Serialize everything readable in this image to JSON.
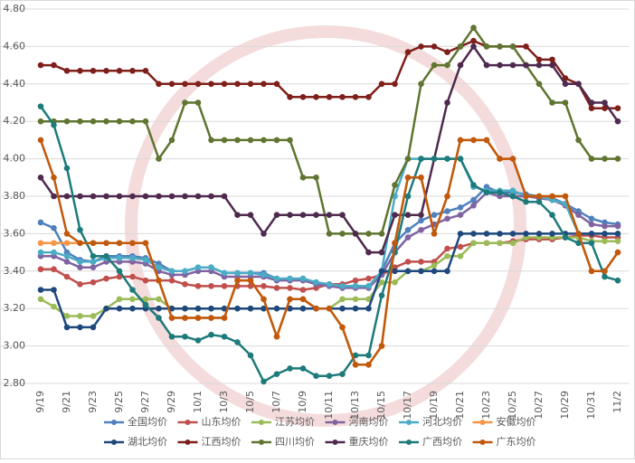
{
  "chart_data": {
    "type": "line",
    "categories": [
      "9/19",
      null,
      "9/21",
      null,
      "9/23",
      null,
      "9/25",
      null,
      "9/27",
      null,
      "9/29",
      null,
      "10/1",
      null,
      "10/3",
      null,
      "10/5",
      null,
      "10/7",
      null,
      "10/9",
      null,
      "10/11",
      null,
      "10/13",
      null,
      "10/15",
      null,
      "10/17",
      null,
      "10/19",
      null,
      "10/21",
      null,
      "10/23",
      null,
      "10/25",
      null,
      "10/27",
      null,
      "10/29",
      null,
      "10/31",
      null,
      "11/2"
    ],
    "ylim": [
      2.8,
      4.8
    ],
    "yticks": [
      {
        "value": 2.8,
        "label": "2.80"
      },
      {
        "value": 3.0,
        "label": "3.00"
      },
      {
        "value": 3.2,
        "label": "3.20"
      },
      {
        "value": 3.4,
        "label": "3.40"
      },
      {
        "value": 3.6,
        "label": "3.60"
      },
      {
        "value": 3.8,
        "label": "3.80"
      },
      {
        "value": 4.0,
        "label": "4.00"
      },
      {
        "value": 4.2,
        "label": "4.20"
      },
      {
        "value": 4.4,
        "label": "4.40"
      },
      {
        "value": 4.6,
        "label": "4.60"
      },
      {
        "value": 4.8,
        "label": "4.80"
      }
    ],
    "grid": true,
    "legend": "bottom",
    "series": [
      {
        "name": "全国均价",
        "color": "#4f81bd",
        "values": [
          3.66,
          3.63,
          3.5,
          3.46,
          3.45,
          3.48,
          3.48,
          3.48,
          3.47,
          3.44,
          3.4,
          3.4,
          3.42,
          3.42,
          3.39,
          3.39,
          3.39,
          3.39,
          3.36,
          3.36,
          3.36,
          3.34,
          3.33,
          3.32,
          3.32,
          3.32,
          3.4,
          3.55,
          3.62,
          3.67,
          3.7,
          3.72,
          3.74,
          3.78,
          3.85,
          3.82,
          3.82,
          3.81,
          3.8,
          3.79,
          3.76,
          3.72,
          3.68,
          3.66,
          3.65
        ]
      },
      {
        "name": "山东均价",
        "color": "#c0504d",
        "values": [
          3.41,
          3.41,
          3.37,
          3.33,
          3.34,
          3.36,
          3.37,
          3.37,
          3.35,
          3.35,
          3.35,
          3.33,
          3.32,
          3.32,
          3.32,
          3.32,
          3.32,
          3.32,
          3.31,
          3.31,
          3.3,
          3.31,
          3.33,
          3.33,
          3.35,
          3.36,
          3.38,
          3.42,
          3.45,
          3.45,
          3.45,
          3.52,
          3.53,
          3.55,
          3.55,
          3.55,
          3.56,
          3.57,
          3.57,
          3.57,
          3.58,
          3.59,
          3.59,
          3.58,
          3.58
        ]
      },
      {
        "name": "江苏均价",
        "color": "#9bbb59",
        "values": [
          3.25,
          3.21,
          3.16,
          3.16,
          3.16,
          3.2,
          3.25,
          3.25,
          3.25,
          3.25,
          3.2,
          3.2,
          3.2,
          3.2,
          3.2,
          3.2,
          3.2,
          3.2,
          3.2,
          3.2,
          3.2,
          3.2,
          3.2,
          3.25,
          3.25,
          3.25,
          3.34,
          3.34,
          3.4,
          3.4,
          3.43,
          3.48,
          3.48,
          3.55,
          3.55,
          3.55,
          3.55,
          3.58,
          3.58,
          3.58,
          3.58,
          3.58,
          3.56,
          3.56,
          3.56
        ]
      },
      {
        "name": "河南均价",
        "color": "#8064a2",
        "values": [
          3.48,
          3.48,
          3.45,
          3.42,
          3.42,
          3.45,
          3.45,
          3.45,
          3.44,
          3.4,
          3.38,
          3.38,
          3.4,
          3.4,
          3.37,
          3.37,
          3.37,
          3.37,
          3.35,
          3.35,
          3.35,
          3.33,
          3.32,
          3.31,
          3.31,
          3.31,
          3.38,
          3.5,
          3.58,
          3.62,
          3.65,
          3.68,
          3.7,
          3.75,
          3.82,
          3.8,
          3.8,
          3.8,
          3.79,
          3.78,
          3.75,
          3.7,
          3.65,
          3.64,
          3.64
        ]
      },
      {
        "name": "河北均价",
        "color": "#4bacc6",
        "values": [
          3.5,
          3.5,
          3.48,
          3.45,
          3.45,
          3.47,
          3.47,
          3.47,
          3.46,
          3.42,
          3.4,
          3.4,
          3.42,
          3.42,
          3.39,
          3.39,
          3.39,
          3.38,
          3.36,
          3.36,
          3.36,
          3.34,
          3.33,
          3.32,
          3.32,
          3.32,
          3.4,
          3.8,
          4.0,
          4.0,
          4.0,
          4.0,
          4.0,
          3.85,
          3.83,
          3.83,
          3.83,
          3.8,
          3.8,
          3.78,
          3.76,
          3.6,
          3.6,
          3.6,
          3.6
        ]
      },
      {
        "name": "安徽均价",
        "color": "#f79646",
        "values": [
          3.55,
          3.55,
          3.55,
          3.55,
          3.55,
          3.55,
          3.55,
          3.55,
          3.55,
          3.35,
          3.15,
          3.15,
          3.15,
          3.15,
          3.15,
          3.35,
          3.35,
          3.25,
          3.05,
          3.25,
          3.25,
          3.2,
          3.2,
          3.1,
          2.9,
          2.9,
          3.0,
          3.55,
          3.9,
          3.9,
          3.6,
          3.8,
          4.1,
          4.1,
          4.1,
          4.0,
          4.0,
          3.8,
          3.8,
          3.8,
          3.8,
          3.6,
          3.4,
          3.4,
          3.5
        ]
      },
      {
        "name": "湖北均价",
        "color": "#1f497d",
        "values": [
          3.3,
          3.3,
          3.1,
          3.1,
          3.1,
          3.2,
          3.2,
          3.2,
          3.2,
          3.2,
          3.2,
          3.2,
          3.2,
          3.2,
          3.2,
          3.2,
          3.2,
          3.2,
          3.2,
          3.2,
          3.2,
          3.2,
          3.2,
          3.2,
          3.2,
          3.2,
          3.4,
          3.4,
          3.4,
          3.4,
          3.4,
          3.4,
          3.6,
          3.6,
          3.6,
          3.6,
          3.6,
          3.6,
          3.6,
          3.6,
          3.6,
          3.6,
          3.6,
          3.6,
          3.6
        ]
      },
      {
        "name": "江西均价",
        "color": "#7f1f1a",
        "values": [
          4.5,
          4.5,
          4.47,
          4.47,
          4.47,
          4.47,
          4.47,
          4.47,
          4.47,
          4.4,
          4.4,
          4.4,
          4.4,
          4.4,
          4.4,
          4.4,
          4.4,
          4.4,
          4.4,
          4.33,
          4.33,
          4.33,
          4.33,
          4.33,
          4.33,
          4.33,
          4.4,
          4.4,
          4.57,
          4.6,
          4.6,
          4.57,
          4.6,
          4.63,
          4.6,
          4.6,
          4.6,
          4.6,
          4.53,
          4.53,
          4.43,
          4.4,
          4.27,
          4.27,
          4.27
        ]
      },
      {
        "name": "四川均价",
        "color": "#5f7530",
        "values": [
          4.2,
          4.2,
          4.2,
          4.2,
          4.2,
          4.2,
          4.2,
          4.2,
          4.2,
          4.0,
          4.1,
          4.3,
          4.3,
          4.1,
          4.1,
          4.1,
          4.1,
          4.1,
          4.1,
          4.1,
          3.9,
          3.9,
          3.6,
          3.6,
          3.6,
          3.6,
          3.6,
          3.86,
          4.0,
          4.4,
          4.5,
          4.5,
          4.6,
          4.7,
          4.6,
          4.6,
          4.6,
          4.5,
          4.4,
          4.3,
          4.3,
          4.1,
          4.0,
          4.0,
          4.0
        ]
      },
      {
        "name": "重庆均价",
        "color": "#4f2a4e",
        "values": [
          3.9,
          3.8,
          3.8,
          3.8,
          3.8,
          3.8,
          3.8,
          3.8,
          3.8,
          3.8,
          3.8,
          3.8,
          3.8,
          3.8,
          3.8,
          3.7,
          3.7,
          3.6,
          3.7,
          3.7,
          3.7,
          3.7,
          3.7,
          3.7,
          3.6,
          3.5,
          3.5,
          3.7,
          3.7,
          3.7,
          4.0,
          4.3,
          4.5,
          4.6,
          4.5,
          4.5,
          4.5,
          4.5,
          4.5,
          4.5,
          4.4,
          4.4,
          4.3,
          4.3,
          4.2
        ]
      },
      {
        "name": "广西均价",
        "color": "#1e7b7b",
        "values": [
          4.28,
          4.18,
          3.95,
          3.62,
          3.48,
          3.48,
          3.4,
          3.3,
          3.22,
          3.15,
          3.05,
          3.05,
          3.03,
          3.06,
          3.05,
          3.02,
          2.95,
          2.81,
          2.85,
          2.88,
          2.88,
          2.84,
          2.84,
          2.85,
          2.95,
          2.95,
          3.27,
          3.5,
          3.8,
          4.0,
          4.0,
          4.0,
          4.0,
          3.86,
          3.82,
          3.82,
          3.8,
          3.77,
          3.77,
          3.7,
          3.58,
          3.55,
          3.55,
          3.37,
          3.35
        ]
      },
      {
        "name": "广东均价",
        "color": "#c0590d",
        "values": [
          4.1,
          3.9,
          3.6,
          3.55,
          3.55,
          3.55,
          3.55,
          3.55,
          3.55,
          3.35,
          3.15,
          3.15,
          3.15,
          3.15,
          3.15,
          3.35,
          3.35,
          3.25,
          3.05,
          3.25,
          3.25,
          3.2,
          3.2,
          3.1,
          2.9,
          2.9,
          3.0,
          3.55,
          3.9,
          3.9,
          3.6,
          3.8,
          4.1,
          4.1,
          4.1,
          4.0,
          4.0,
          3.8,
          3.8,
          3.8,
          3.8,
          3.6,
          3.4,
          3.4,
          3.5
        ]
      }
    ]
  }
}
